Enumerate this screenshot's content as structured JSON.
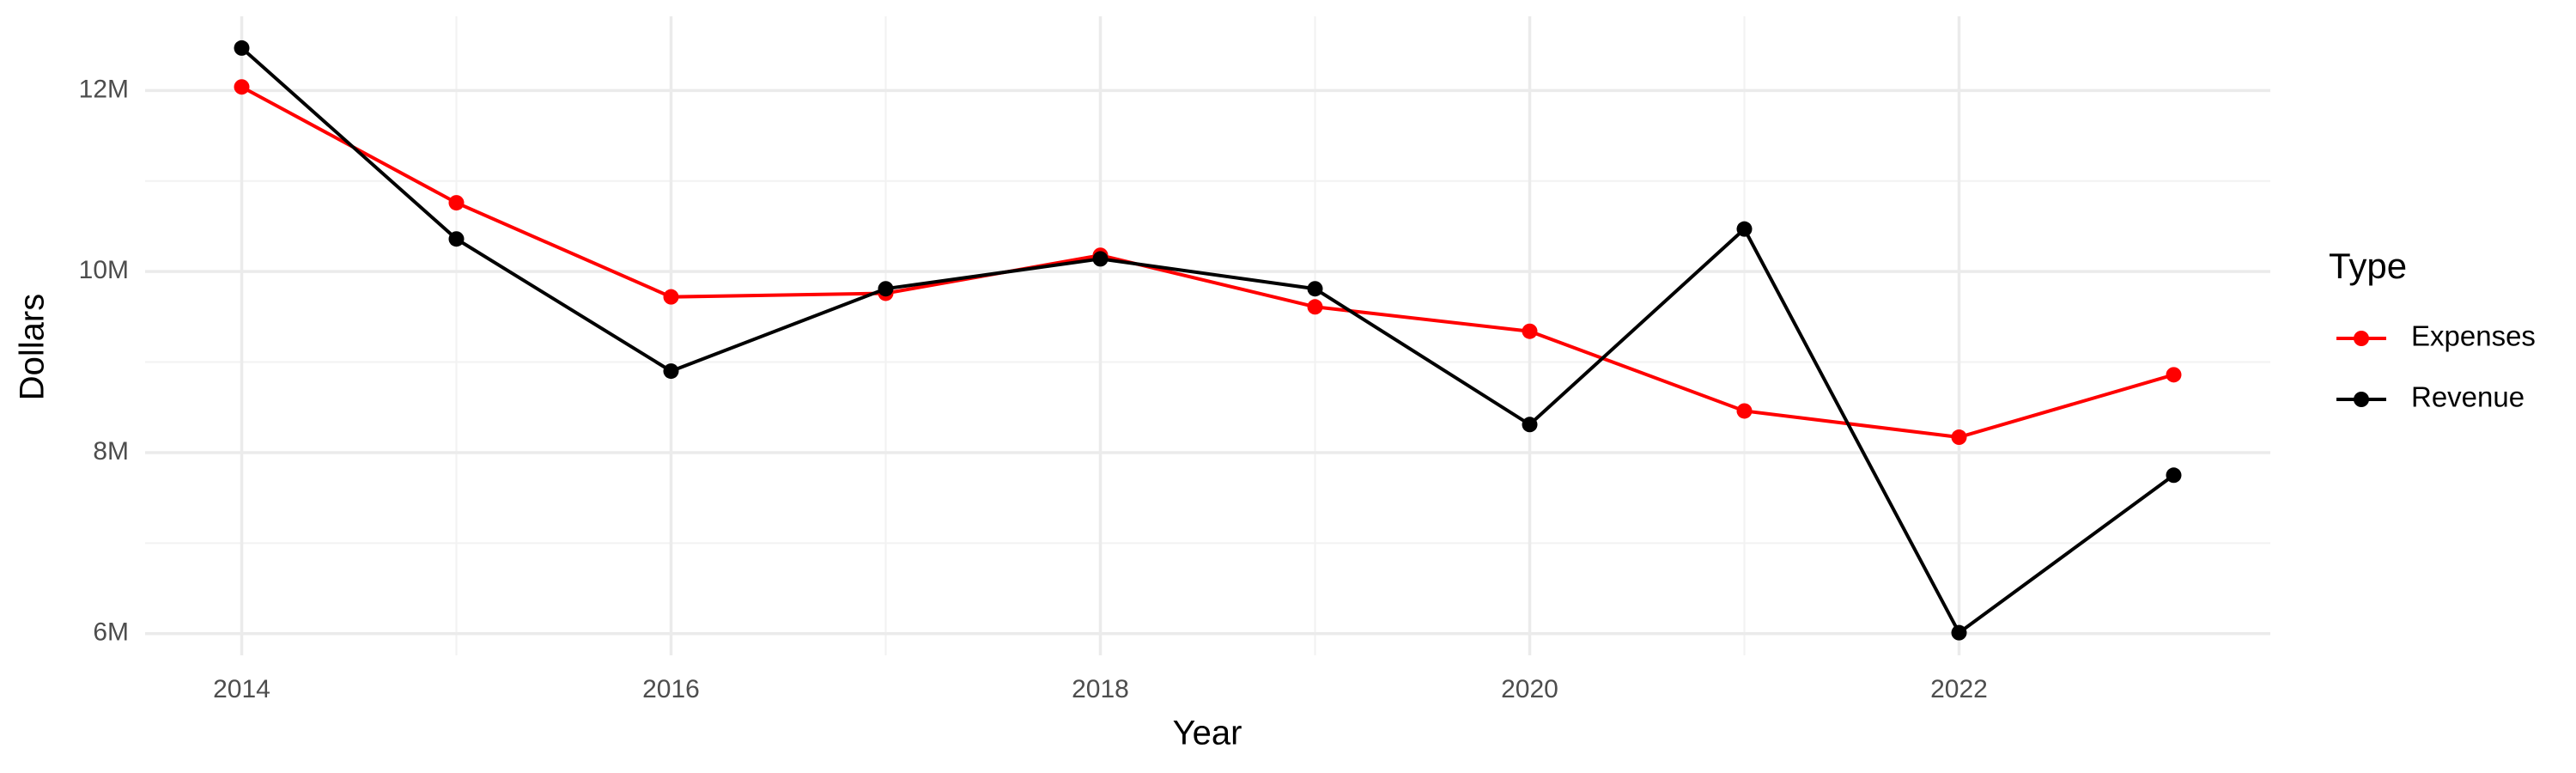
{
  "chart_data": {
    "type": "line",
    "x_label": "Year",
    "y_label": "Dollars",
    "legend_title": "Type",
    "x": [
      2014,
      2015,
      2016,
      2017,
      2018,
      2019,
      2020,
      2021,
      2022,
      2023
    ],
    "series": [
      {
        "name": "Expenses",
        "color": "#ff0000",
        "values": [
          12040000,
          10760000,
          9720000,
          9760000,
          10180000,
          9610000,
          9340000,
          8460000,
          8170000,
          8860000
        ]
      },
      {
        "name": "Revenue",
        "color": "#000000",
        "values": [
          12470000,
          10360000,
          8900000,
          9810000,
          10140000,
          9810000,
          8310000,
          10470000,
          6010000,
          7750000
        ]
      }
    ],
    "xlim": [
      2013.55,
      2023.45
    ],
    "xticks": [
      2014,
      2016,
      2018,
      2020,
      2022
    ],
    "ylim": [
      5760000,
      12820000
    ],
    "yticks": [
      {
        "value": 6000000,
        "label": "6M"
      },
      {
        "value": 8000000,
        "label": "8M"
      },
      {
        "value": 10000000,
        "label": "10M"
      },
      {
        "value": 12000000,
        "label": "12M"
      }
    ],
    "grid": true,
    "minor_grid": true,
    "legend_position": "right"
  }
}
